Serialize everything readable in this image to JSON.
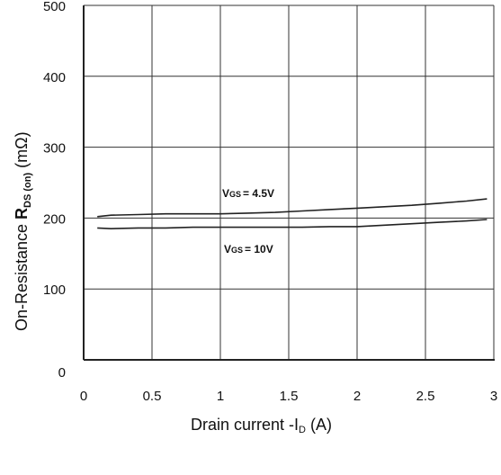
{
  "chart_data": {
    "type": "line",
    "xlabel": "Drain current -ID (A)",
    "ylabel": "On-Resistance RDS(on) (mΩ)",
    "ylabel_main": "On-Resistance ",
    "ylabel_symbol": "R",
    "ylabel_sub": "DS (on)",
    "ylabel_unit": " (mΩ)",
    "xlabel_text": "Drain current -I",
    "xlabel_sub": "D",
    "xlabel_unit": " (A)",
    "xlim": [
      0,
      3
    ],
    "ylim": [
      0,
      500
    ],
    "x_ticks": [
      "0",
      "0.5",
      "1",
      "1.5",
      "2",
      "2.5",
      "3"
    ],
    "y_ticks": [
      "0",
      "100",
      "200",
      "300",
      "400",
      "500"
    ],
    "grid": true,
    "series": [
      {
        "name": "VGS = 4.5V",
        "label_main": "V",
        "label_sub": "GS",
        "label_rest": "= 4.5V",
        "x": [
          0.1,
          0.2,
          0.4,
          0.6,
          0.8,
          1.0,
          1.2,
          1.4,
          1.6,
          1.8,
          2.0,
          2.2,
          2.4,
          2.6,
          2.8,
          2.95
        ],
        "y": [
          202,
          204,
          205,
          206,
          206,
          206,
          207,
          208,
          210,
          212,
          214,
          216,
          218,
          221,
          224,
          227
        ]
      },
      {
        "name": "VGS = 10V",
        "label_main": "V",
        "label_sub": "GS",
        "label_rest": "= 10V",
        "x": [
          0.1,
          0.2,
          0.4,
          0.6,
          0.8,
          1.0,
          1.2,
          1.4,
          1.6,
          1.8,
          2.0,
          2.2,
          2.4,
          2.6,
          2.8,
          2.95
        ],
        "y": [
          186,
          185,
          186,
          186,
          187,
          187,
          187,
          187,
          187,
          188,
          188,
          190,
          192,
          194,
          196,
          198
        ]
      }
    ]
  }
}
